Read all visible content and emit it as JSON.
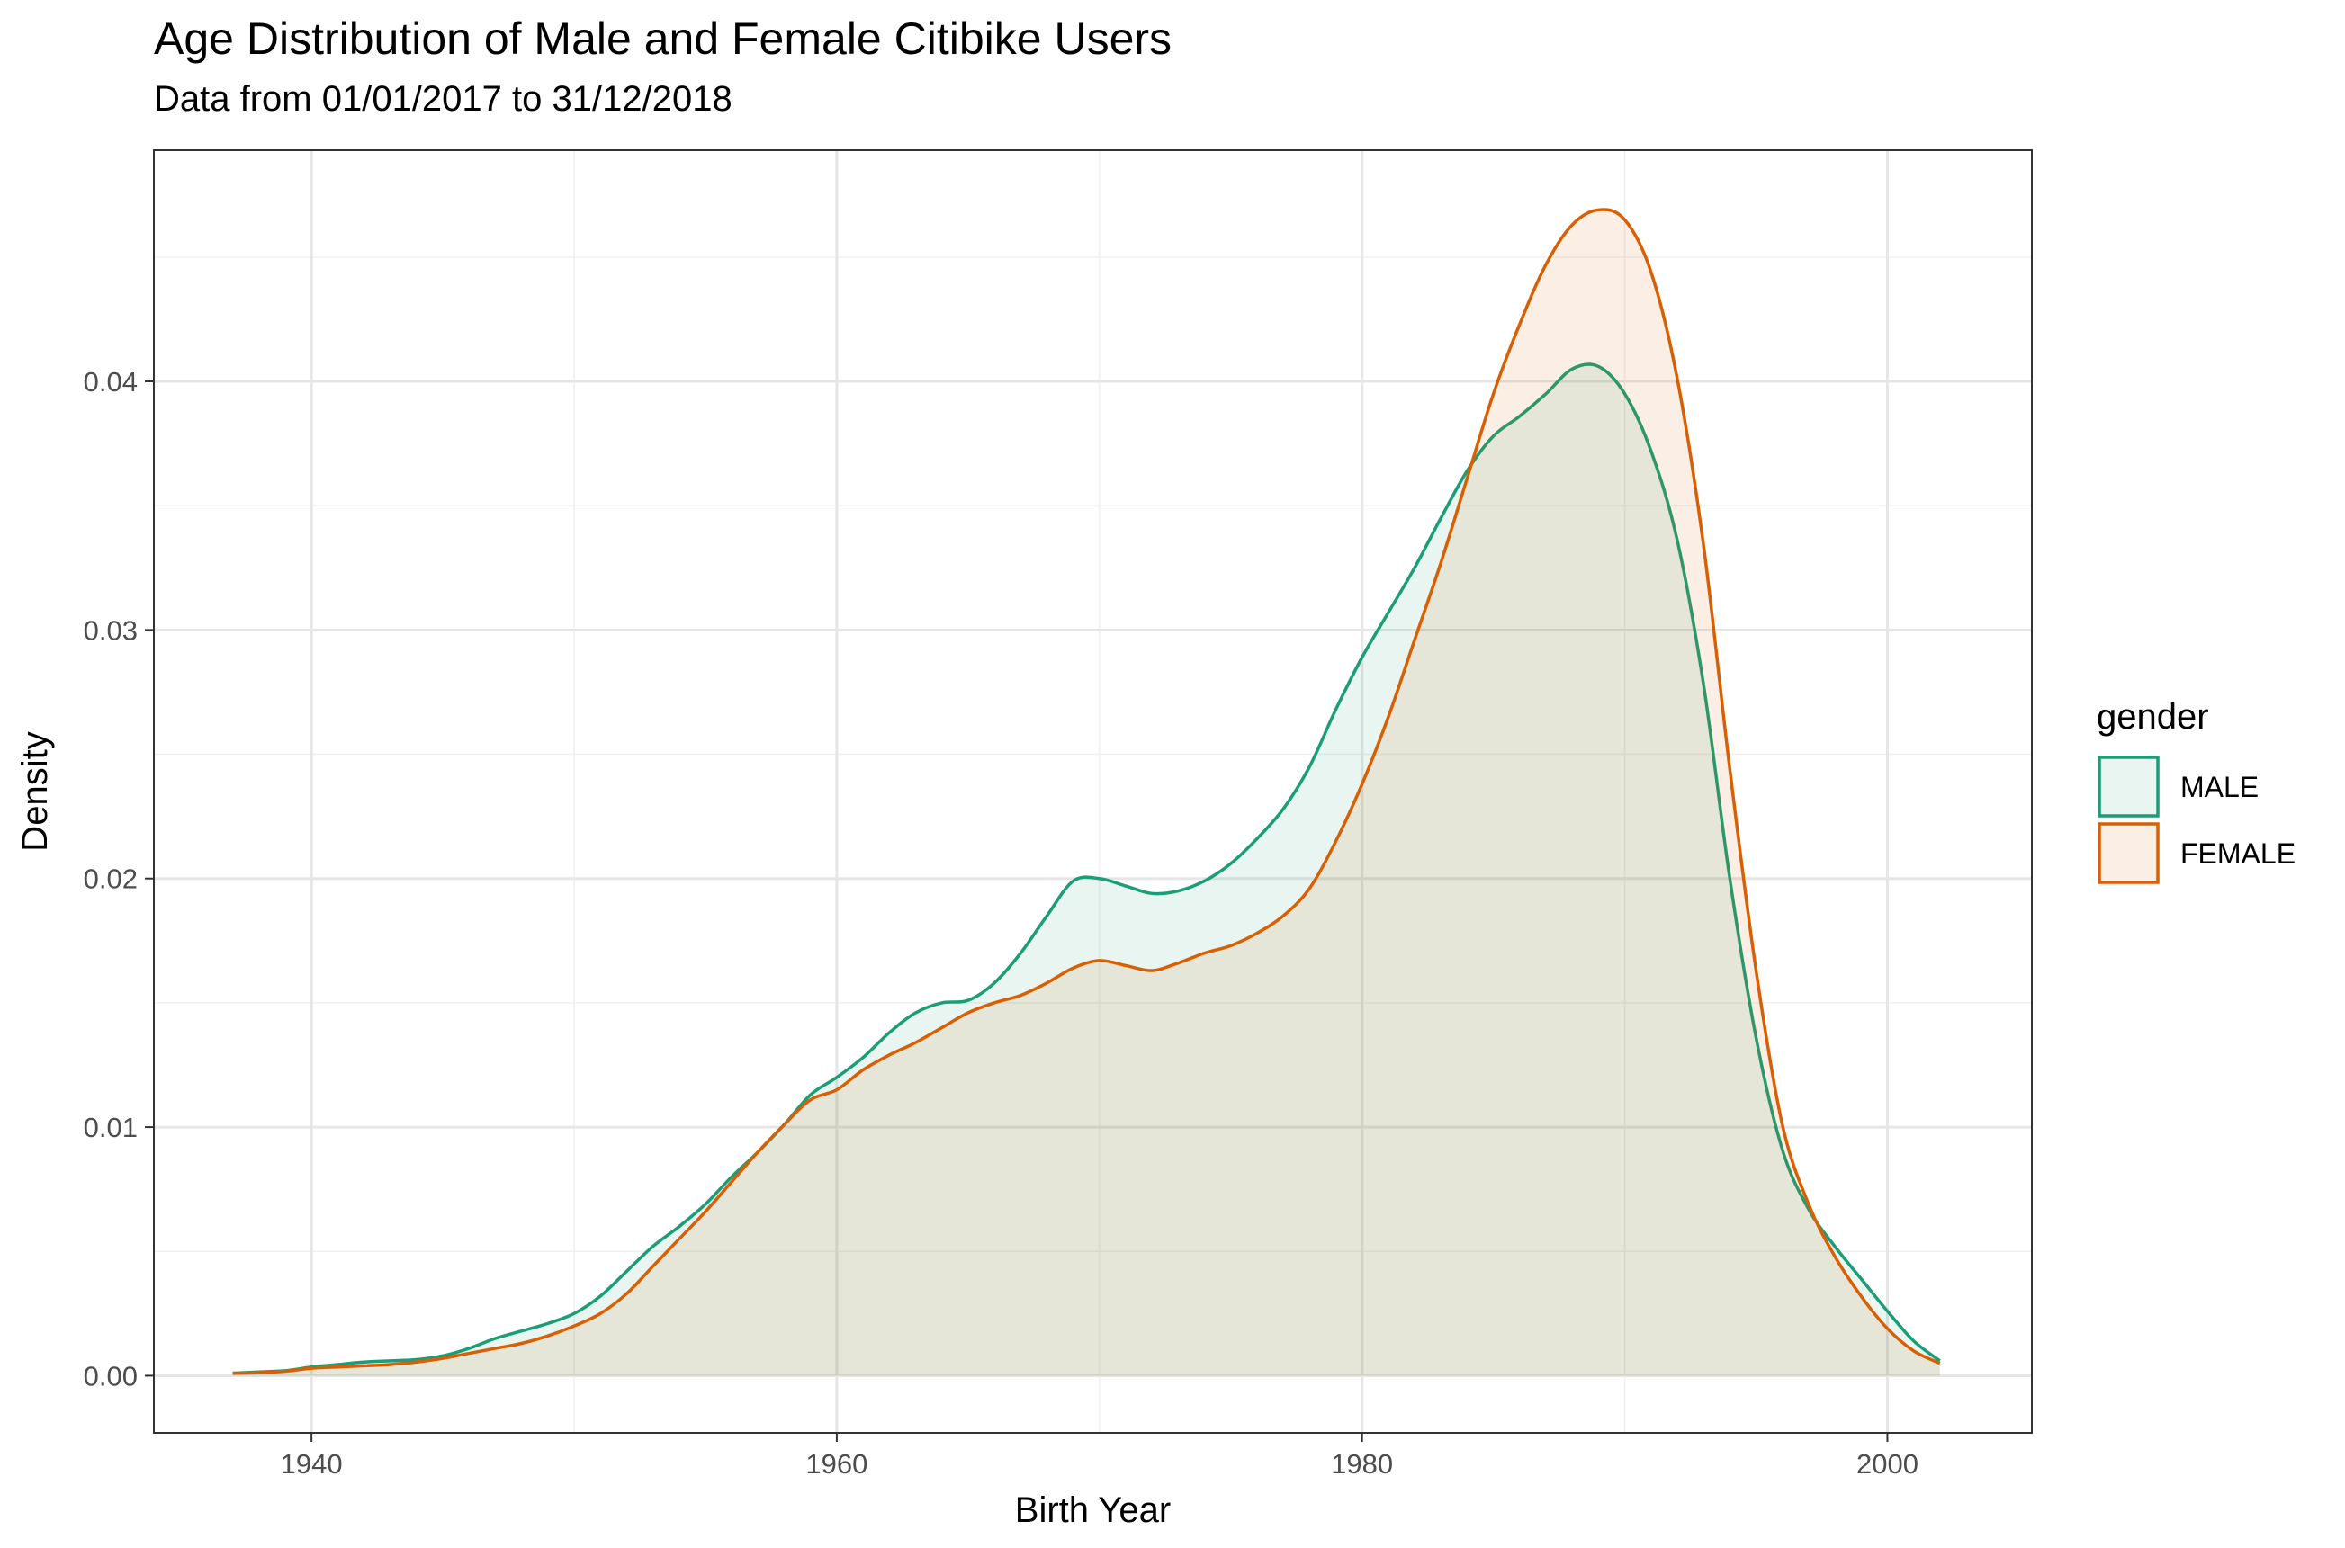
{
  "chart_data": {
    "type": "area",
    "title": "Age Distribution of Male and Female Citibike Users",
    "subtitle": "Data from 01/01/2017 to 31/12/2018",
    "xlabel": "Birth Year",
    "ylabel": "Density",
    "xlim": [
      1934,
      2005.5
    ],
    "ylim": [
      -0.0023,
      0.0493
    ],
    "x_ticks": [
      1940,
      1960,
      1980,
      2000
    ],
    "x_tick_labels": [
      "1940",
      "1960",
      "1980",
      "2000"
    ],
    "y_ticks": [
      0,
      0.01,
      0.02,
      0.03,
      0.04
    ],
    "y_tick_labels": [
      "0.00",
      "0.01",
      "0.02",
      "0.03",
      "0.04"
    ],
    "grid": true,
    "legend": {
      "title": "gender",
      "position": "right"
    },
    "series": [
      {
        "name": "MALE",
        "stroke": "#1b9e77",
        "fill": "#1b9e77",
        "fill_opacity": 0.1,
        "points": [
          [
            1937,
            0.0001
          ],
          [
            1938,
            0.00015
          ],
          [
            1939,
            0.0002
          ],
          [
            1940,
            0.00035
          ],
          [
            1941,
            0.00045
          ],
          [
            1942,
            0.00055
          ],
          [
            1943,
            0.0006
          ],
          [
            1944,
            0.00065
          ],
          [
            1945,
            0.0008
          ],
          [
            1946,
            0.0011
          ],
          [
            1947,
            0.0015
          ],
          [
            1948,
            0.0018
          ],
          [
            1949,
            0.0021
          ],
          [
            1950,
            0.0025
          ],
          [
            1951,
            0.0032
          ],
          [
            1952,
            0.0042
          ],
          [
            1953,
            0.0052
          ],
          [
            1954,
            0.006
          ],
          [
            1955,
            0.0069
          ],
          [
            1956,
            0.008
          ],
          [
            1957,
            0.009
          ],
          [
            1958,
            0.0101
          ],
          [
            1959,
            0.0113
          ],
          [
            1960,
            0.012
          ],
          [
            1961,
            0.0128
          ],
          [
            1962,
            0.0138
          ],
          [
            1963,
            0.0146
          ],
          [
            1964,
            0.015
          ],
          [
            1965,
            0.0151
          ],
          [
            1966,
            0.0158
          ],
          [
            1967,
            0.017
          ],
          [
            1968,
            0.0185
          ],
          [
            1969,
            0.0199
          ],
          [
            1970,
            0.02
          ],
          [
            1971,
            0.0197
          ],
          [
            1972,
            0.0194
          ],
          [
            1973,
            0.0195
          ],
          [
            1974,
            0.0199
          ],
          [
            1975,
            0.0206
          ],
          [
            1976,
            0.0216
          ],
          [
            1977,
            0.0228
          ],
          [
            1978,
            0.0245
          ],
          [
            1979,
            0.0268
          ],
          [
            1980,
            0.0289
          ],
          [
            1981,
            0.0307
          ],
          [
            1982,
            0.0325
          ],
          [
            1983,
            0.0345
          ],
          [
            1984,
            0.0364
          ],
          [
            1985,
            0.0378
          ],
          [
            1986,
            0.0386
          ],
          [
            1987,
            0.0395
          ],
          [
            1988,
            0.0405
          ],
          [
            1989,
            0.0406
          ],
          [
            1990,
            0.0395
          ],
          [
            1991,
            0.0372
          ],
          [
            1992,
            0.0336
          ],
          [
            1993,
            0.0278
          ],
          [
            1994,
            0.02
          ],
          [
            1995,
            0.0136
          ],
          [
            1996,
            0.0091
          ],
          [
            1997,
            0.0067
          ],
          [
            1998,
            0.0052
          ],
          [
            1999,
            0.0039
          ],
          [
            2000,
            0.0026
          ],
          [
            2001,
            0.0014
          ],
          [
            2002,
            0.0006
          ]
        ]
      },
      {
        "name": "FEMALE",
        "stroke": "#d95f02",
        "fill": "#d95f02",
        "fill_opacity": 0.1,
        "points": [
          [
            1937,
            0.0001
          ],
          [
            1938,
            0.00012
          ],
          [
            1939,
            0.00018
          ],
          [
            1940,
            0.0003
          ],
          [
            1941,
            0.00035
          ],
          [
            1942,
            0.0004
          ],
          [
            1943,
            0.00045
          ],
          [
            1944,
            0.00055
          ],
          [
            1945,
            0.0007
          ],
          [
            1946,
            0.0009
          ],
          [
            1947,
            0.0011
          ],
          [
            1948,
            0.0013
          ],
          [
            1949,
            0.0016
          ],
          [
            1950,
            0.002
          ],
          [
            1951,
            0.0025
          ],
          [
            1952,
            0.0033
          ],
          [
            1953,
            0.0044
          ],
          [
            1954,
            0.0055
          ],
          [
            1955,
            0.0066
          ],
          [
            1956,
            0.0078
          ],
          [
            1957,
            0.009
          ],
          [
            1958,
            0.0101
          ],
          [
            1959,
            0.0111
          ],
          [
            1960,
            0.0115
          ],
          [
            1961,
            0.0123
          ],
          [
            1962,
            0.0129
          ],
          [
            1963,
            0.0134
          ],
          [
            1964,
            0.014
          ],
          [
            1965,
            0.0146
          ],
          [
            1966,
            0.015
          ],
          [
            1967,
            0.0153
          ],
          [
            1968,
            0.0158
          ],
          [
            1969,
            0.0164
          ],
          [
            1970,
            0.0167
          ],
          [
            1971,
            0.0165
          ],
          [
            1972,
            0.0163
          ],
          [
            1973,
            0.0166
          ],
          [
            1974,
            0.017
          ],
          [
            1975,
            0.0173
          ],
          [
            1976,
            0.0178
          ],
          [
            1977,
            0.0185
          ],
          [
            1978,
            0.0196
          ],
          [
            1979,
            0.0215
          ],
          [
            1980,
            0.0238
          ],
          [
            1981,
            0.0265
          ],
          [
            1982,
            0.0296
          ],
          [
            1983,
            0.0327
          ],
          [
            1984,
            0.0361
          ],
          [
            1985,
            0.0395
          ],
          [
            1986,
            0.0423
          ],
          [
            1987,
            0.0447
          ],
          [
            1988,
            0.0463
          ],
          [
            1989,
            0.0469
          ],
          [
            1990,
            0.0465
          ],
          [
            1991,
            0.0444
          ],
          [
            1992,
            0.0401
          ],
          [
            1993,
            0.0334
          ],
          [
            1994,
            0.0244
          ],
          [
            1995,
            0.0163
          ],
          [
            1996,
            0.0101
          ],
          [
            1997,
            0.0069
          ],
          [
            1998,
            0.0048
          ],
          [
            1999,
            0.0032
          ],
          [
            2000,
            0.0019
          ],
          [
            2001,
            0.001
          ],
          [
            2002,
            0.0005
          ]
        ]
      }
    ]
  }
}
